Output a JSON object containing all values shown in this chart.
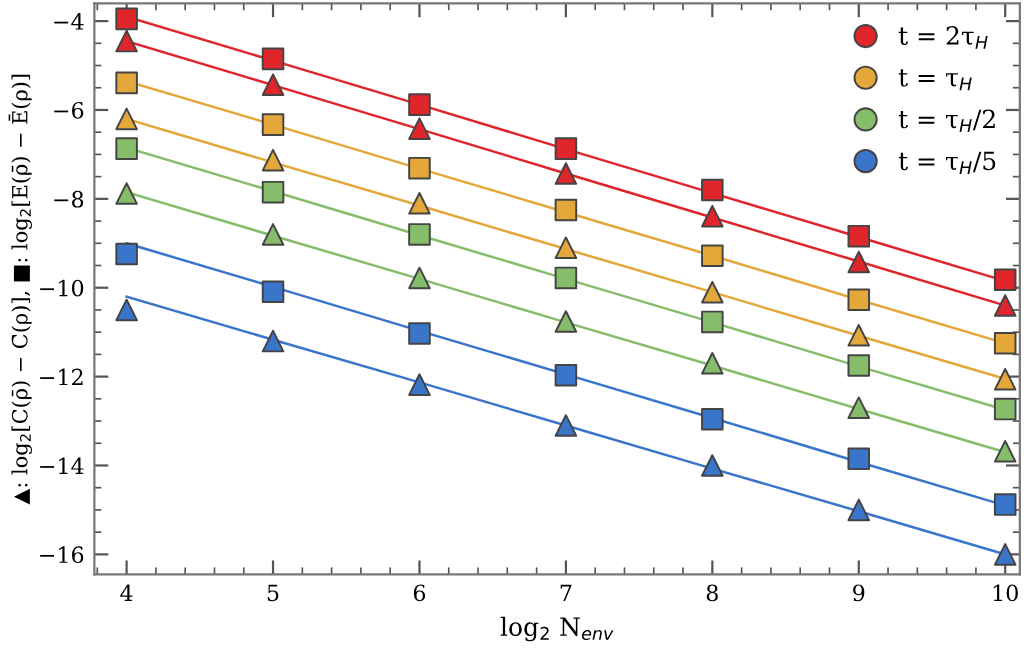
{
  "chart_data": {
    "type": "scatter",
    "xlabel": "log$_{2}$ N$_{env}$",
    "ylabel": "▲: log$_{2}$[C(ρ̄) − C̄(ρ)], ■: log$_{2}$[E(ρ̄) − Ē(ρ)]",
    "x": [
      4,
      5,
      6,
      7,
      8,
      9,
      10
    ],
    "xlim": [
      3.78,
      10.1
    ],
    "xticks": [
      4,
      5,
      6,
      7,
      8,
      9,
      10
    ],
    "ylim": [
      -16.45,
      -3.6
    ],
    "yticks": [
      {
        "value": -4,
        "label": "−4"
      },
      {
        "value": -6,
        "label": "−6"
      },
      {
        "value": -8,
        "label": "−8"
      },
      {
        "value": -10,
        "label": "−10"
      },
      {
        "value": -12,
        "label": "−12"
      },
      {
        "value": -14,
        "label": "−14"
      },
      {
        "value": -16,
        "label": "−16"
      }
    ],
    "grid": false,
    "legend": "top right",
    "series": [
      {
        "name": "t = 2τ$_{H}$",
        "color": "#e0262a",
        "marker": "square",
        "values": [
          -3.95,
          -4.85,
          -5.88,
          -6.87,
          -7.8,
          -8.84,
          -9.82
        ]
      },
      {
        "color": "#e0262a",
        "marker": "triangle",
        "values": [
          -4.45,
          -5.43,
          -6.42,
          -7.43,
          -8.39,
          -9.42,
          -10.4
        ]
      },
      {
        "name": "t = τ$_{H}$",
        "color": "#e3a73a",
        "marker": "square",
        "values": [
          -5.39,
          -6.33,
          -7.31,
          -8.25,
          -9.28,
          -10.27,
          -11.25
        ]
      },
      {
        "color": "#e3a73a",
        "marker": "triangle",
        "values": [
          -6.2,
          -7.13,
          -8.1,
          -9.1,
          -10.1,
          -11.07,
          -12.06
        ]
      },
      {
        "name": "t = τ$_{H}$/2",
        "color": "#86bd6b",
        "marker": "square",
        "values": [
          -6.87,
          -7.85,
          -8.8,
          -9.78,
          -10.77,
          -11.75,
          -12.73
        ]
      },
      {
        "color": "#86bd6b",
        "marker": "triangle",
        "values": [
          -7.88,
          -8.8,
          -9.78,
          -10.76,
          -11.7,
          -12.7,
          -13.68
        ]
      },
      {
        "name": "t = τ$_{H}$/5",
        "color": "#3a75cc",
        "marker": "square",
        "values": [
          -9.24,
          -10.09,
          -11.03,
          -11.97,
          -12.96,
          -13.85,
          -14.88
        ]
      },
      {
        "color": "#3a75cc",
        "marker": "triangle",
        "values": [
          -10.5,
          -11.2,
          -12.18,
          -13.1,
          -14.0,
          -15.0,
          -16.0
        ]
      },
      {
        "type": "line",
        "color": "#e0262a",
        "values": [
          -3.9,
          -4.89,
          -5.88,
          -6.88,
          -7.87,
          -8.86,
          -9.85
        ]
      },
      {
        "type": "line",
        "color": "#e0262a",
        "values": [
          -4.45,
          -5.44,
          -6.43,
          -7.43,
          -8.42,
          -9.41,
          -10.4
        ]
      },
      {
        "type": "line",
        "color": "#e3a73a",
        "values": [
          -5.35,
          -6.33,
          -7.32,
          -8.3,
          -9.28,
          -10.27,
          -11.25
        ]
      },
      {
        "type": "line",
        "color": "#e3a73a",
        "values": [
          -6.2,
          -7.18,
          -8.15,
          -9.13,
          -10.1,
          -11.08,
          -12.05
        ]
      },
      {
        "type": "line",
        "color": "#86bd6b",
        "values": [
          -6.85,
          -7.83,
          -8.82,
          -9.8,
          -10.78,
          -11.77,
          -12.75
        ]
      },
      {
        "type": "line",
        "color": "#86bd6b",
        "values": [
          -7.85,
          -8.83,
          -9.8,
          -10.78,
          -11.75,
          -12.73,
          -13.7
        ]
      },
      {
        "type": "line",
        "color": "#3a75cc",
        "values": [
          -9.0,
          -9.98,
          -10.97,
          -11.95,
          -12.93,
          -13.92,
          -14.9
        ]
      },
      {
        "type": "line",
        "color": "#3a75cc",
        "values": [
          -10.2,
          -11.17,
          -12.13,
          -13.1,
          -14.07,
          -15.03,
          -16.0
        ]
      }
    ]
  }
}
